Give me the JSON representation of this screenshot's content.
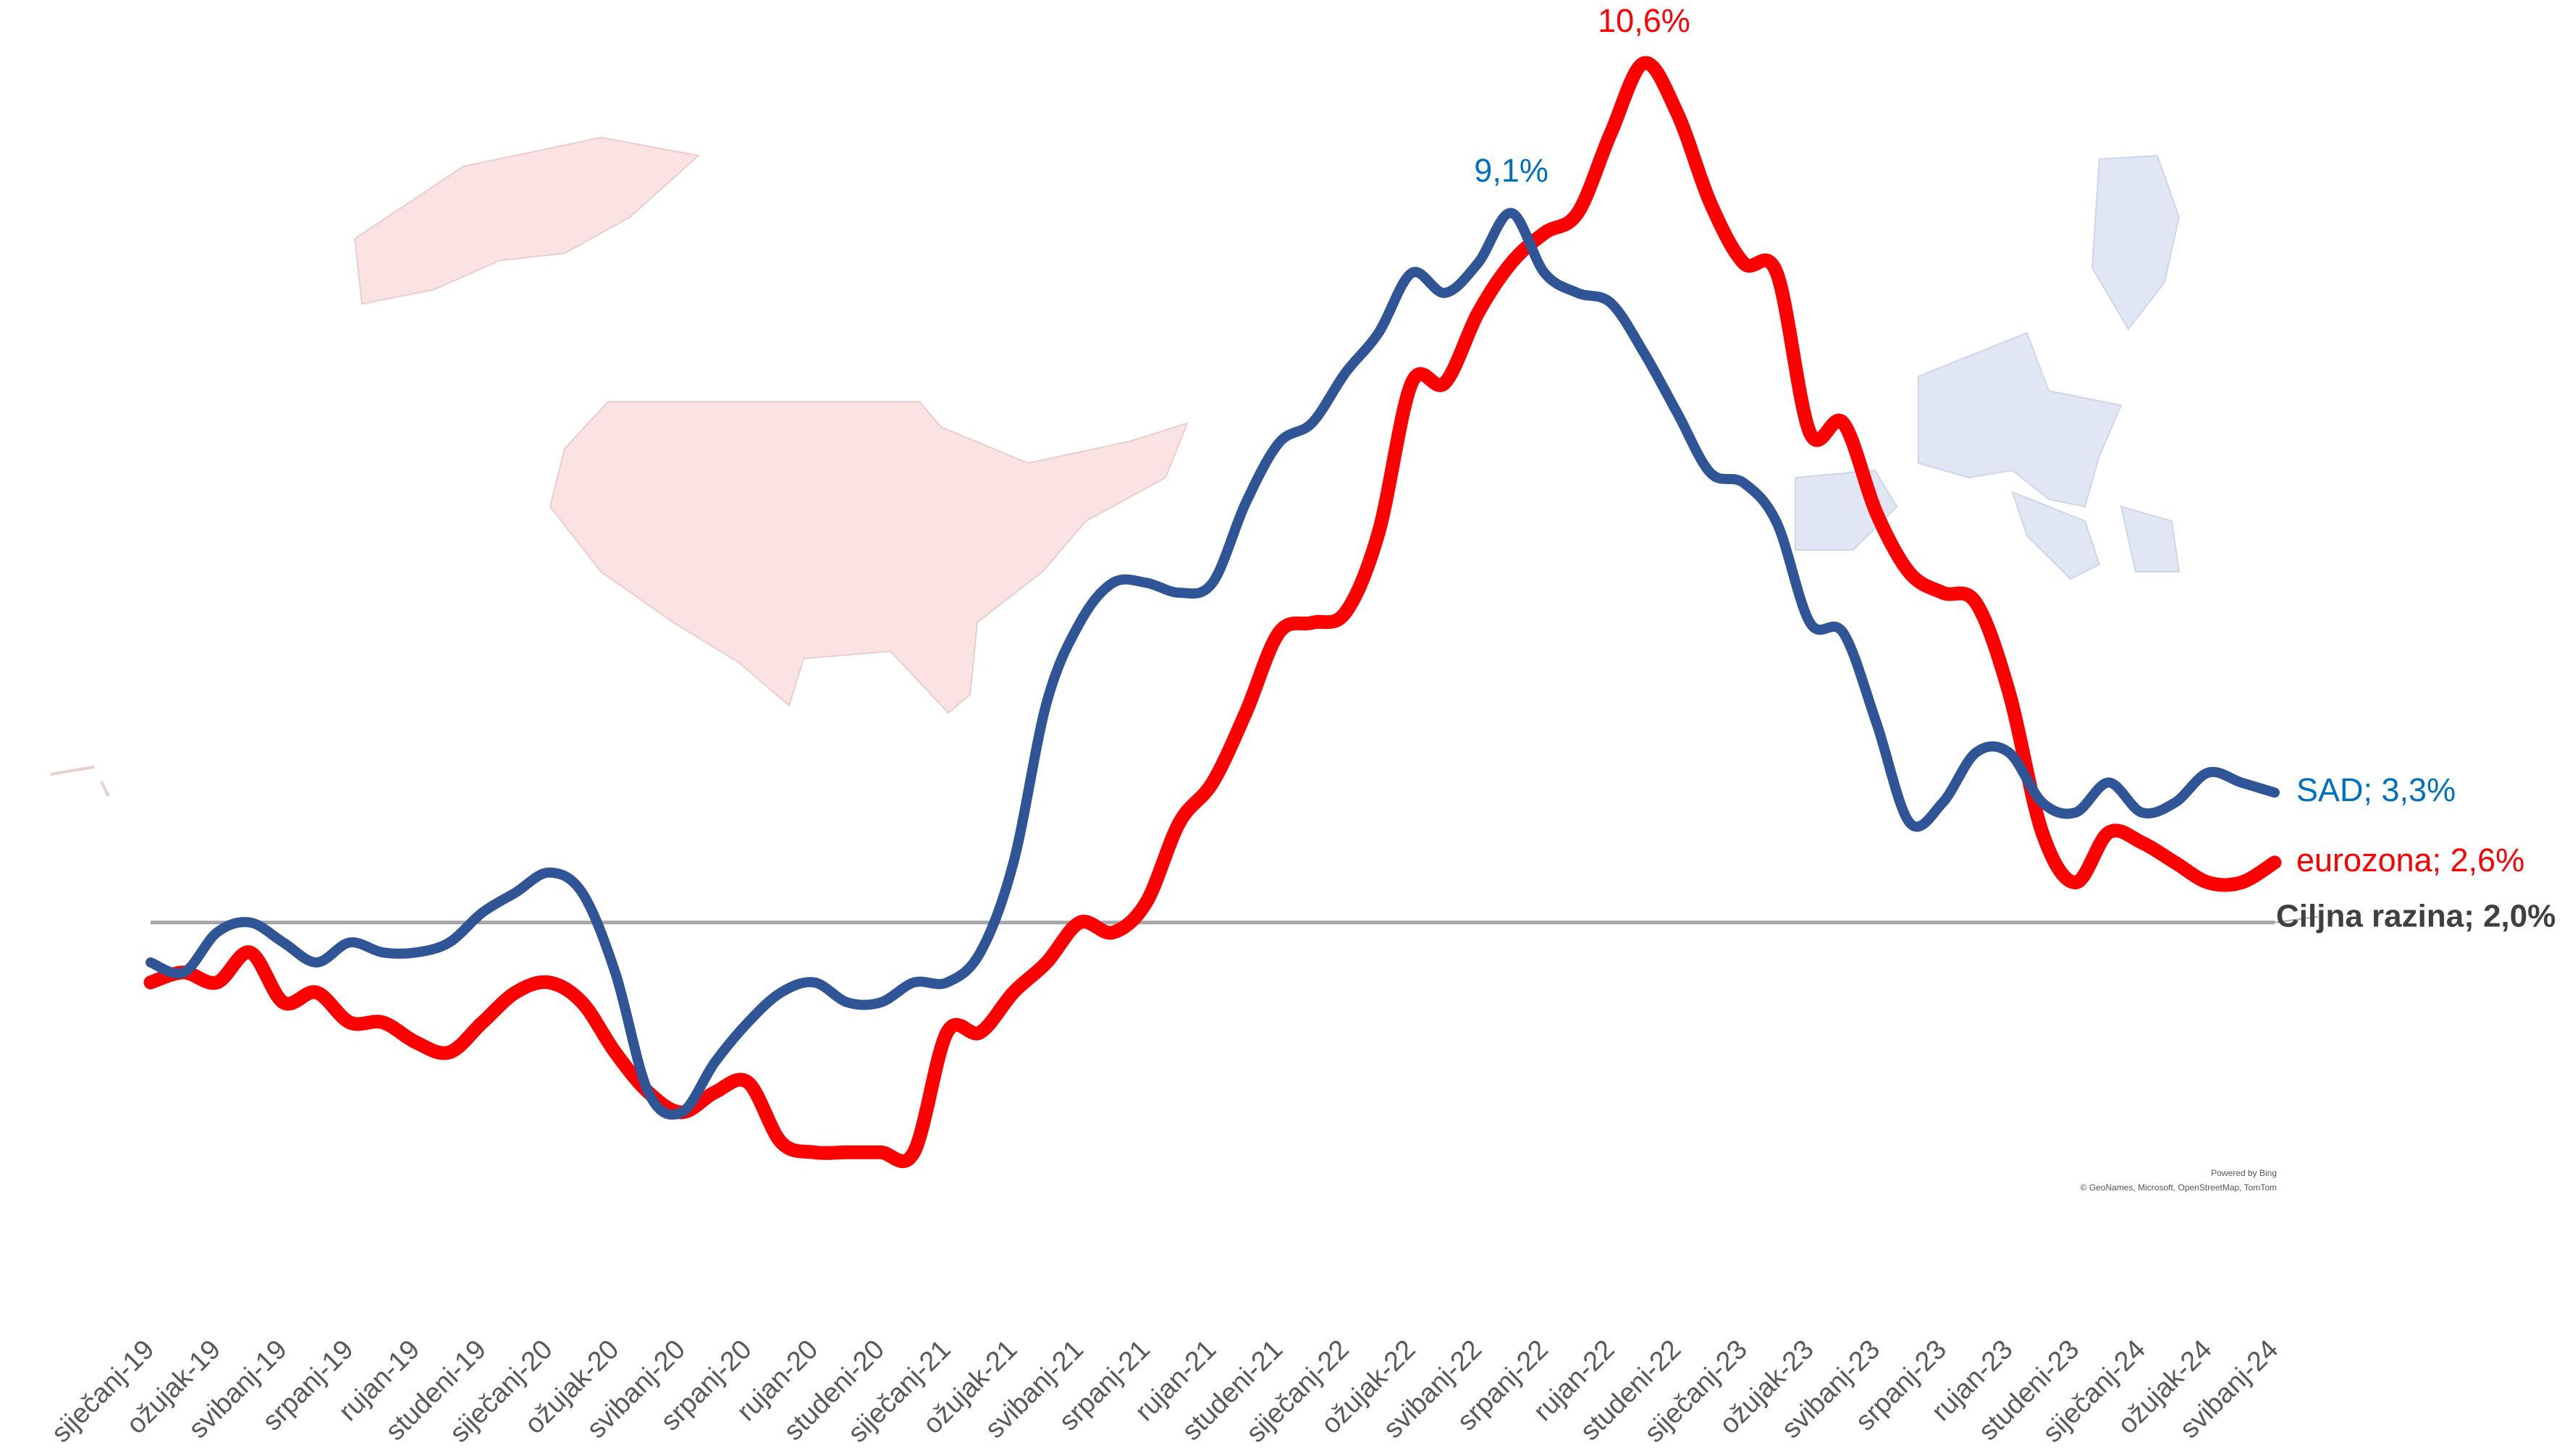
{
  "chart_data": {
    "type": "line",
    "categories": [
      "siječanj-19",
      null,
      "ožujak-19",
      null,
      "svibanj-19",
      null,
      "srpanj-19",
      null,
      "rujan-19",
      null,
      "studeni-19",
      null,
      "siječanj-20",
      null,
      "ožujak-20",
      null,
      "svibanj-20",
      null,
      "srpanj-20",
      null,
      "rujan-20",
      null,
      "studeni-20",
      null,
      "siječanj-21",
      null,
      "ožujak-21",
      null,
      "svibanj-21",
      null,
      "srpanj-21",
      null,
      "rujan-21",
      null,
      "studeni-21",
      null,
      "siječanj-22",
      null,
      "ožujak-22",
      null,
      "svibanj-22",
      null,
      "srpanj-22",
      null,
      "rujan-22",
      null,
      "studeni-22",
      null,
      "siječanj-23",
      null,
      "ožujak-23",
      null,
      "svibanj-23",
      null,
      "srpanj-23",
      null,
      "rujan-23",
      null,
      "studeni-23",
      null,
      "siječanj-24",
      null,
      "ožujak-24",
      null,
      "svibanj-24"
    ],
    "series": [
      {
        "color": "#2f5597",
        "values": [
          1.6,
          1.5,
          1.9,
          2.0,
          1.8,
          1.6,
          1.8,
          1.7,
          1.7,
          1.8,
          2.1,
          2.3,
          2.5,
          2.3,
          1.5,
          0.3,
          0.1,
          0.6,
          1.0,
          1.3,
          1.4,
          1.2,
          1.2,
          1.4,
          1.4,
          1.7,
          2.6,
          4.2,
          5.0,
          5.4,
          5.4,
          5.3,
          5.4,
          6.2,
          6.8,
          7.0,
          7.5,
          7.9,
          8.5,
          8.3,
          8.6,
          9.1,
          8.5,
          8.3,
          8.2,
          7.7,
          7.1,
          6.5,
          6.4,
          6.0,
          5.0,
          4.9,
          4.0,
          3.0,
          3.2,
          3.7,
          3.7,
          3.2,
          3.1,
          3.4,
          3.1,
          3.2,
          3.5,
          3.4,
          3.3
        ],
        "value_labels": [
          null,
          null,
          null,
          null,
          null,
          null,
          null,
          null,
          null,
          null,
          null,
          null,
          null,
          null,
          null,
          null,
          null,
          null,
          null,
          null,
          null,
          null,
          null,
          null,
          null,
          null,
          null,
          null,
          null,
          null,
          null,
          null,
          null,
          null,
          null,
          null,
          null,
          null,
          null,
          null,
          null,
          "9,1%",
          null,
          null,
          null,
          null,
          null,
          null,
          null,
          null,
          null,
          null,
          null,
          null,
          null,
          null,
          null,
          null,
          null,
          null,
          null,
          null,
          null,
          null,
          "SAD; 3,3%"
        ]
      },
      {
        "color": "#ff0000",
        "values": [
          1.4,
          1.5,
          1.4,
          1.7,
          1.2,
          1.3,
          1.0,
          1.0,
          0.8,
          0.7,
          1.0,
          1.3,
          1.4,
          1.2,
          0.7,
          0.3,
          0.1,
          0.3,
          0.4,
          -0.2,
          -0.3,
          -0.3,
          -0.3,
          -0.3,
          0.9,
          0.9,
          1.3,
          1.6,
          2.0,
          1.9,
          2.2,
          3.0,
          3.4,
          4.1,
          4.9,
          5.0,
          5.1,
          5.9,
          7.4,
          7.4,
          8.1,
          8.6,
          8.9,
          9.1,
          9.9,
          10.6,
          10.1,
          9.2,
          8.6,
          8.5,
          6.9,
          7.0,
          6.1,
          5.5,
          5.3,
          5.2,
          4.3,
          2.9,
          2.4,
          2.9,
          2.8,
          2.6,
          2.4,
          2.4,
          2.6
        ],
        "value_labels": [
          null,
          null,
          null,
          null,
          null,
          null,
          null,
          null,
          null,
          null,
          null,
          null,
          null,
          null,
          null,
          null,
          null,
          null,
          null,
          null,
          null,
          null,
          null,
          null,
          null,
          null,
          null,
          null,
          null,
          null,
          null,
          null,
          null,
          null,
          null,
          null,
          null,
          null,
          null,
          null,
          null,
          null,
          null,
          null,
          null,
          "10,6%",
          null,
          null,
          null,
          null,
          null,
          null,
          null,
          null,
          null,
          null,
          null,
          null,
          null,
          null,
          null,
          null,
          null,
          null,
          "eurozona; 2,6%"
        ]
      }
    ],
    "target_line": {
      "value": 2.0,
      "label": "Ciljna razina; 2,0%",
      "color": "#a6a6a6"
    },
    "ylim": [
      -1,
      11
    ],
    "map_attribution": [
      "Powered by Bing",
      "© GeoNames, Microsoft, OpenStreetMap, TomTom"
    ]
  }
}
